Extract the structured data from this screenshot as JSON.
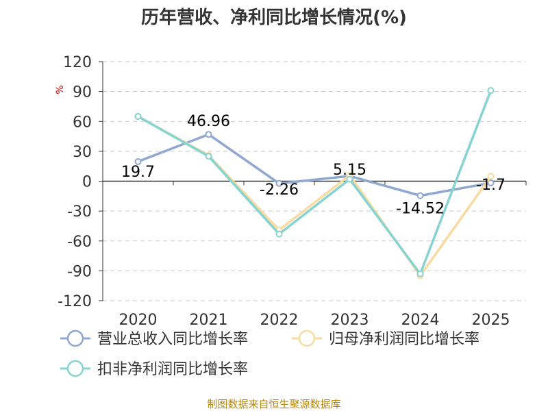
{
  "chart_data": {
    "type": "line",
    "title": "历年营收、净利同比增长情况(%)",
    "ylabel": "%",
    "x": [
      "2020",
      "2021",
      "2022",
      "2023",
      "2024",
      "2025"
    ],
    "ylim": [
      -120,
      120
    ],
    "yticks": [
      120,
      90,
      60,
      30,
      0,
      -30,
      -60,
      -90,
      -120
    ],
    "grid": true,
    "legend_position": "bottom",
    "series": [
      {
        "name": "营业总收入同比增长率",
        "color": "#8fa8d0",
        "values": [
          19.7,
          46.96,
          -2.26,
          5.15,
          -14.52,
          -1.7
        ],
        "labels": [
          "19.7",
          "46.96",
          "-2.26",
          "5.15",
          "-14.52",
          "-1.7"
        ]
      },
      {
        "name": "归母净利润同比增长率",
        "color": "#f8dba0",
        "values": [
          65,
          26,
          -49,
          6,
          -95,
          5
        ]
      },
      {
        "name": "扣非净利润同比增长率",
        "color": "#86d3d1",
        "values": [
          65,
          25,
          -53,
          2,
          -93,
          91
        ]
      }
    ],
    "source": "制图数据来自恒生聚源数据库"
  }
}
